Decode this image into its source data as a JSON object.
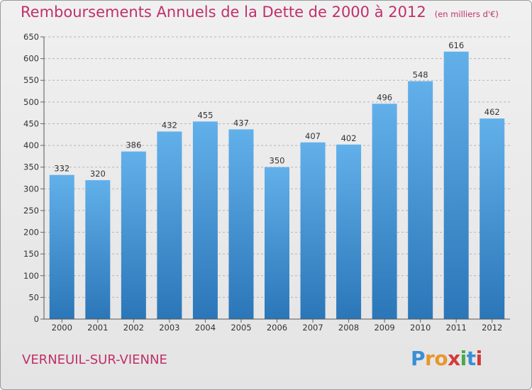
{
  "header": {
    "title": "Remboursements Annuels de la Dette de 2000 à 2012",
    "unit": "(en milliers d'€)"
  },
  "footer": {
    "municipality": "VERNEUIL-SUR-VIENNE",
    "logo_letters": [
      "P",
      "r",
      "o",
      "x",
      "i",
      "t",
      "i"
    ],
    "logo_colors": [
      "#3a8fd6",
      "#e8962c",
      "#e8962c",
      "#d33a3a",
      "#4aa84a",
      "#3a8fd6",
      "#d33a3a"
    ]
  },
  "colors": {
    "title": "#c0306a",
    "bar_top": "#62b0ea",
    "bar_bottom": "#2b76b8",
    "grid": "#b5b5b5",
    "axis_text": "#333333"
  },
  "chart_data": {
    "type": "bar",
    "categories": [
      "2000",
      "2001",
      "2002",
      "2003",
      "2004",
      "2005",
      "2006",
      "2007",
      "2008",
      "2009",
      "2010",
      "2011",
      "2012"
    ],
    "values": [
      332,
      320,
      386,
      432,
      455,
      437,
      350,
      407,
      402,
      496,
      548,
      616,
      462
    ],
    "ylim": [
      0,
      650
    ],
    "yticks": [
      0,
      50,
      100,
      150,
      200,
      250,
      300,
      350,
      400,
      450,
      500,
      550,
      600,
      650
    ],
    "grid": true
  }
}
